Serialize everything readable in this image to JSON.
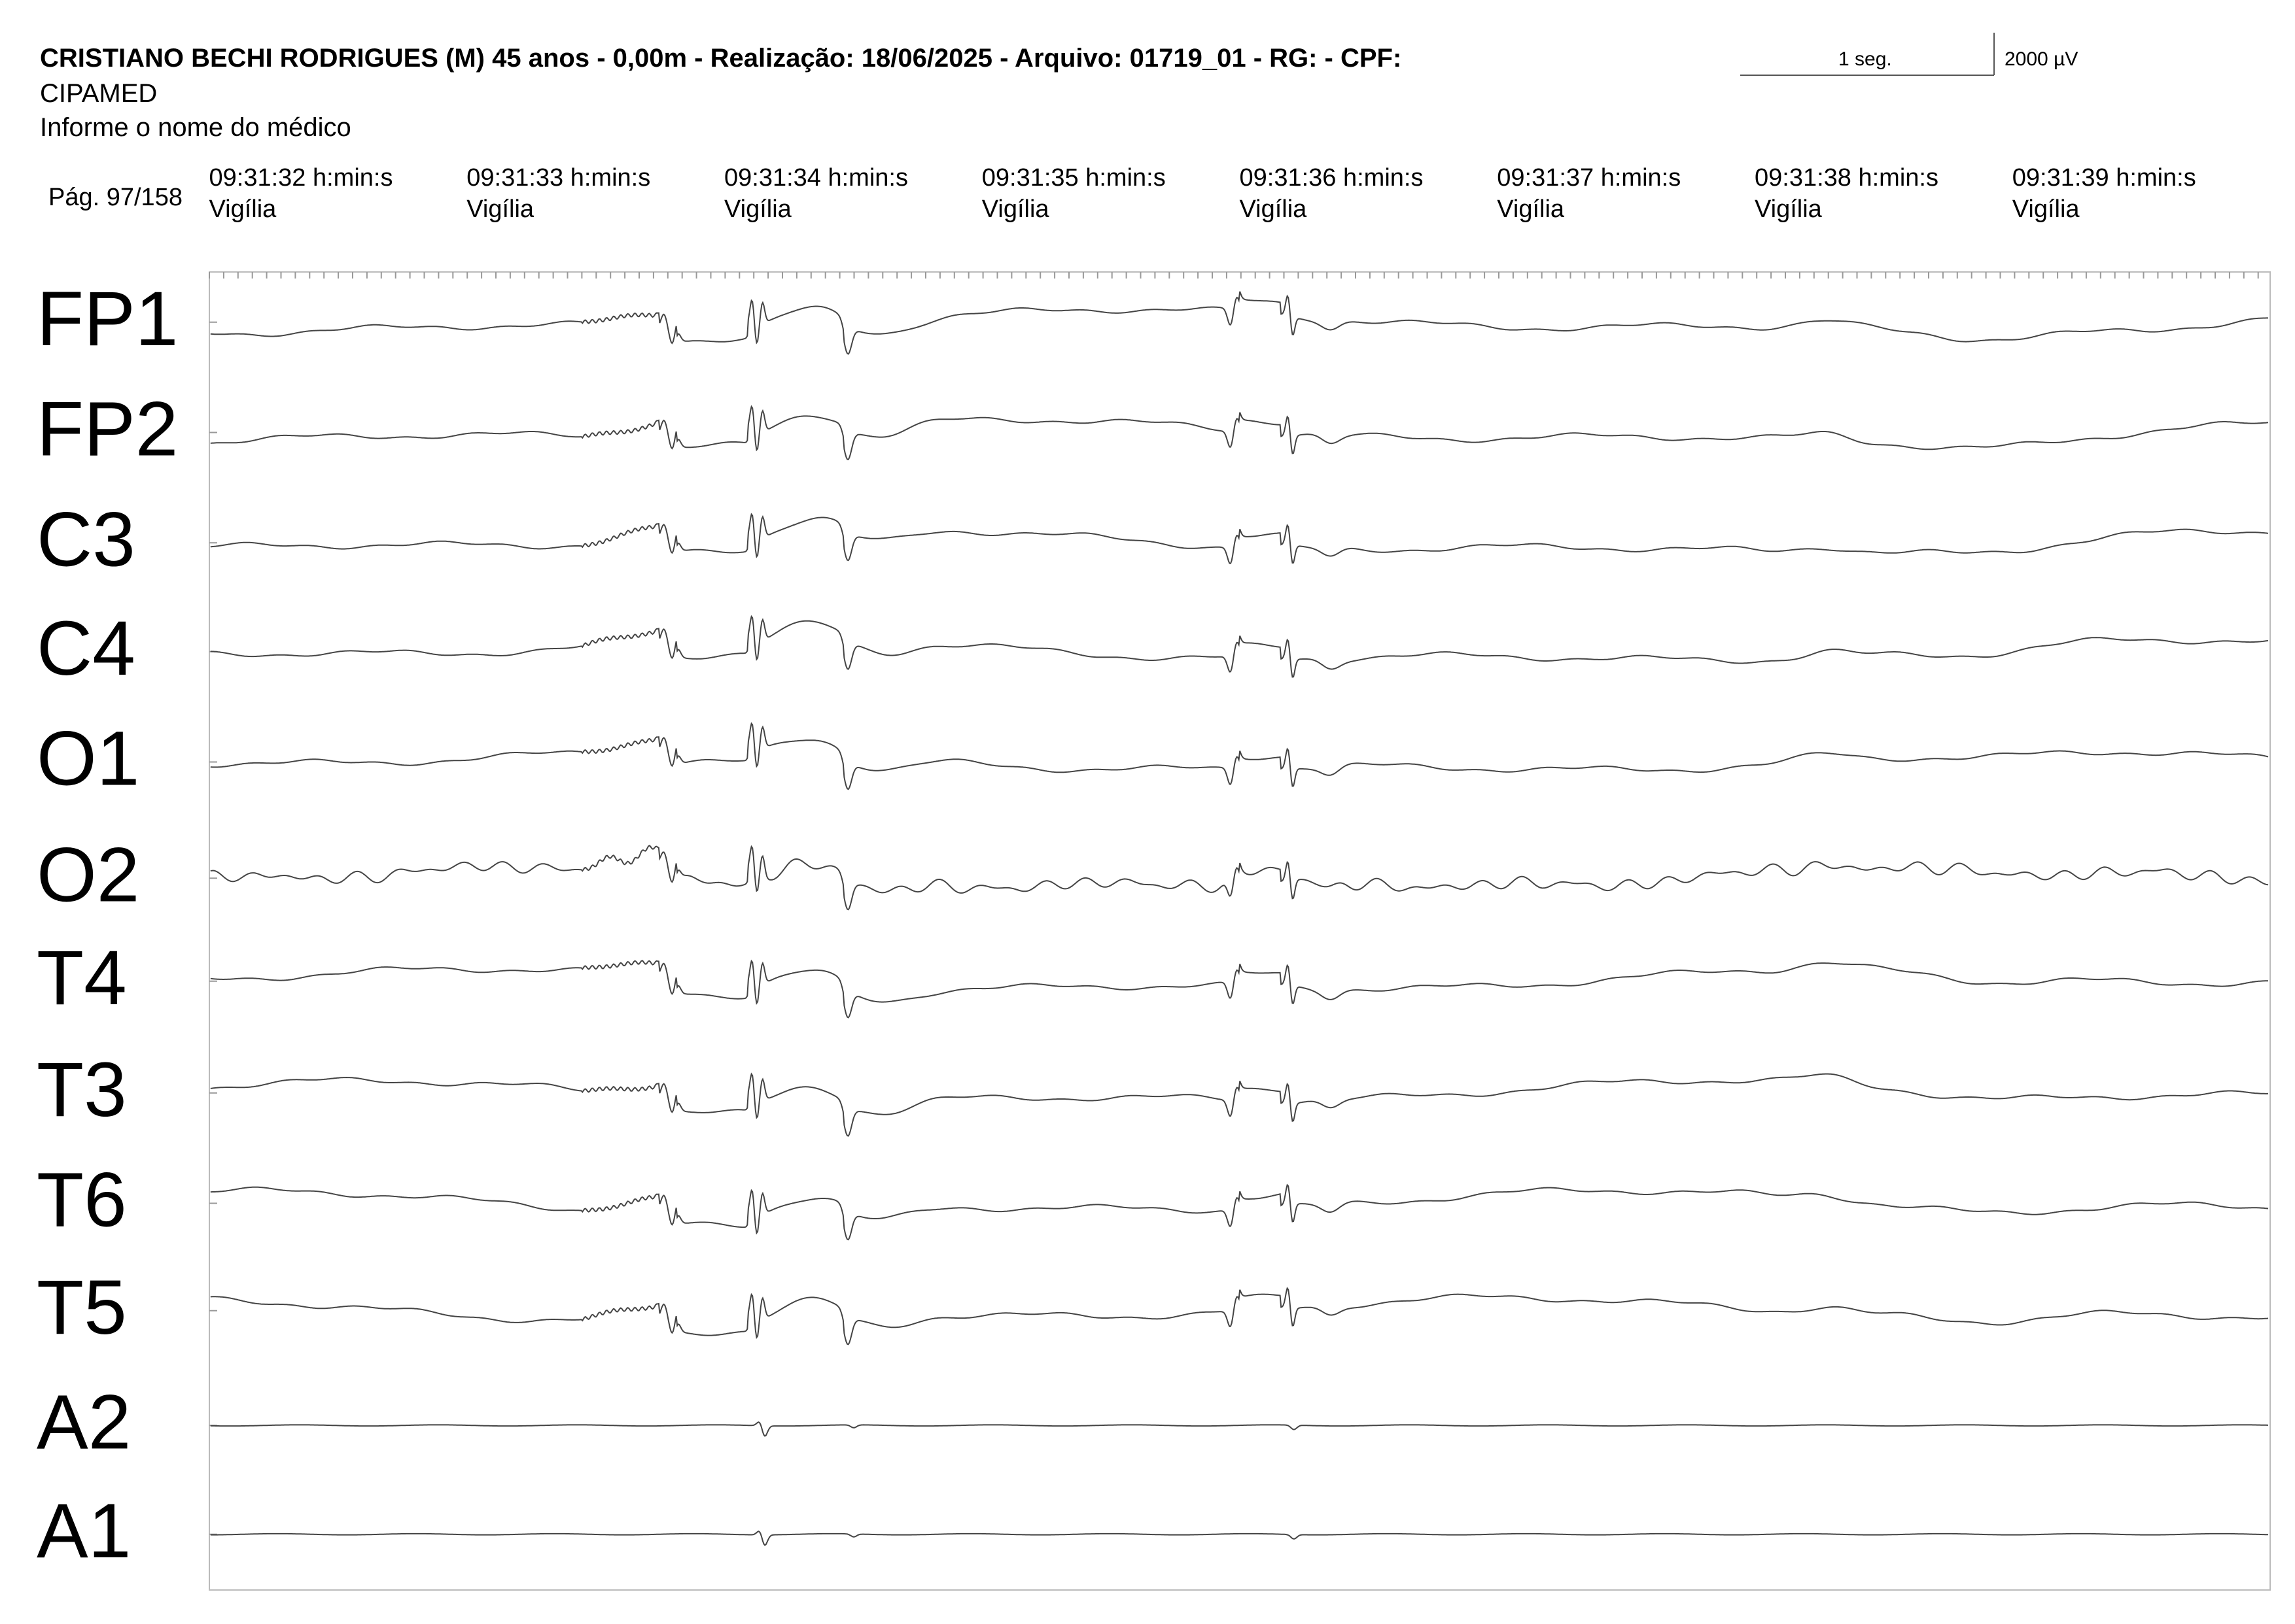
{
  "header": {
    "title": "CRISTIANO BECHI RODRIGUES (M) 45 anos - 0,00m - Realização: 18/06/2025 - Arquivo: 01719_01 - RG:  - CPF:",
    "clinic": "CIPAMED",
    "doctor": "Informe o nome do médico",
    "page": "Pág. 97/158"
  },
  "scale": {
    "time": "1 seg.",
    "amplitude": "2000 µV"
  },
  "epochs": [
    {
      "time": "09:31:32 h:min:s",
      "state": "Vigília"
    },
    {
      "time": "09:31:33 h:min:s",
      "state": "Vigília"
    },
    {
      "time": "09:31:34 h:min:s",
      "state": "Vigília"
    },
    {
      "time": "09:31:35 h:min:s",
      "state": "Vigília"
    },
    {
      "time": "09:31:36 h:min:s",
      "state": "Vigília"
    },
    {
      "time": "09:31:37 h:min:s",
      "state": "Vigília"
    },
    {
      "time": "09:31:38 h:min:s",
      "state": "Vigília"
    },
    {
      "time": "09:31:39 h:min:s",
      "state": "Vigília"
    }
  ],
  "channels": [
    "FP1",
    "FP2",
    "C3",
    "C4",
    "O1",
    "O2",
    "T4",
    "T3",
    "T6",
    "T5",
    "A2",
    "A1"
  ]
}
